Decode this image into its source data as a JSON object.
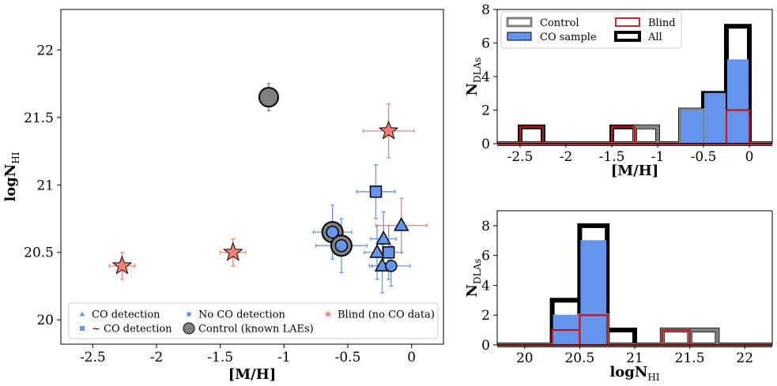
{
  "chart_data": [
    {
      "id": "scatter",
      "type": "scatter",
      "xlabel": "[M/H]",
      "ylabel_main": "logN",
      "ylabel_sub": "HI",
      "xlim": [
        -2.75,
        0.25
      ],
      "ylim": [
        19.82,
        22.3
      ],
      "xticks": [
        -2.5,
        -2,
        -1.5,
        -1,
        -0.5,
        0
      ],
      "xtick_labels": [
        "-2.5",
        "-2",
        "-1.5",
        "-1",
        "-0.5",
        "0"
      ],
      "yticks": [
        20,
        20.5,
        21,
        21.5,
        22
      ],
      "ytick_labels": [
        "20",
        "20.5",
        "21",
        "21.5",
        "22"
      ],
      "colors": {
        "co": "#6495ed",
        "blind": "#fa8072",
        "control": "#808080"
      },
      "points": [
        {
          "x": -1.12,
          "y": 21.65,
          "xerr": 0.07,
          "yerr": 0.1,
          "type": "control",
          "ecolor": "#808080"
        },
        {
          "x": -0.18,
          "y": 21.4,
          "xerr": 0.2,
          "yerr": 0.2,
          "type": "blind",
          "ecolor": "#fa8072"
        },
        {
          "x": -2.27,
          "y": 20.4,
          "xerr": 0.1,
          "yerr": 0.1,
          "type": "blind",
          "ecolor": "#fa8072"
        },
        {
          "x": -1.4,
          "y": 20.5,
          "xerr": 0.1,
          "yerr": 0.1,
          "type": "blind",
          "ecolor": "#fa8072"
        },
        {
          "x": -0.08,
          "y": 20.7,
          "xerr": 0.2,
          "yerr": 0.2,
          "type": "co_detection",
          "ecolor": "#fa8072"
        },
        {
          "x": -0.28,
          "y": 20.95,
          "xerr": 0.15,
          "yerr": 0.2,
          "type": "tentative",
          "ecolor": "#6495ed"
        },
        {
          "x": -0.62,
          "y": 20.65,
          "xerr": 0.15,
          "yerr": 0.2,
          "type": "control_no_co",
          "ecolor": "#6495ed"
        },
        {
          "x": -0.55,
          "y": 20.55,
          "xerr": 0.2,
          "yerr": 0.2,
          "type": "control_no_co",
          "ecolor": "#6495ed"
        },
        {
          "x": -0.22,
          "y": 20.6,
          "xerr": 0.1,
          "yerr": 0.2,
          "type": "co_detection",
          "ecolor": "#6495ed"
        },
        {
          "x": -0.27,
          "y": 20.5,
          "xerr": 0.1,
          "yerr": 0.2,
          "type": "co_detection",
          "ecolor": "#6495ed"
        },
        {
          "x": -0.18,
          "y": 20.5,
          "xerr": 0.1,
          "yerr": 0.2,
          "type": "tentative",
          "ecolor": "#6495ed"
        },
        {
          "x": -0.23,
          "y": 20.4,
          "xerr": 0.1,
          "yerr": 0.2,
          "type": "co_detection",
          "ecolor": "#6495ed"
        },
        {
          "x": -0.16,
          "y": 20.4,
          "xerr": 0.15,
          "yerr": 0.15,
          "type": "no_co",
          "ecolor": "#6495ed"
        }
      ],
      "legend": [
        {
          "symbol": "triangle",
          "label": "CO detection"
        },
        {
          "symbol": "circle",
          "label": "No CO detection"
        },
        {
          "symbol": "star",
          "label": "Blind (no CO data)"
        },
        {
          "symbol": "square",
          "label": "~ CO detection"
        },
        {
          "symbol": "bigcircle",
          "label": "Control (known LAEs)"
        }
      ]
    },
    {
      "id": "hist_metal",
      "type": "bar",
      "xlabel": "[M/H]",
      "ylabel_main": "N",
      "ylabel_sub": "DLAs",
      "xlim": [
        -2.75,
        0.25
      ],
      "ylim": [
        0,
        8
      ],
      "xticks": [
        -2.5,
        -2,
        -1.5,
        -1,
        -0.5,
        0
      ],
      "xtick_labels": [
        "-2.5",
        "-2",
        "-1.5",
        "-1",
        "-0.5",
        "0"
      ],
      "yticks": [
        0,
        2,
        4,
        6,
        8
      ],
      "ytick_labels": [
        "0",
        "2",
        "4",
        "6",
        "8"
      ],
      "bin_edges": [
        -2.75,
        -2.5,
        -2.25,
        -2.0,
        -1.75,
        -1.5,
        -1.25,
        -1.0,
        -0.75,
        -0.5,
        -0.25,
        0.0,
        0.25
      ],
      "series": [
        {
          "name": "All",
          "values": [
            0,
            1,
            0,
            0,
            0,
            1,
            1,
            0,
            2,
            3,
            7,
            0
          ]
        },
        {
          "name": "Control",
          "values": [
            0,
            0,
            0,
            0,
            0,
            0,
            1,
            0,
            2,
            0,
            0,
            0
          ]
        },
        {
          "name": "CO sample",
          "values": [
            0,
            0,
            0,
            0,
            0,
            0,
            0,
            0,
            2,
            3,
            5,
            0
          ]
        },
        {
          "name": "Blind",
          "values": [
            0,
            1,
            0,
            0,
            0,
            1,
            0,
            0,
            0,
            0,
            2,
            0
          ]
        }
      ],
      "legend": [
        {
          "name": "Control",
          "label": "Control"
        },
        {
          "name": "Blind",
          "label": "Blind"
        },
        {
          "name": "CO sample",
          "label": "CO sample"
        },
        {
          "name": "All",
          "label": "All"
        }
      ]
    },
    {
      "id": "hist_nhi",
      "type": "bar",
      "xlabel_main": "logN",
      "xlabel_sub": "HI",
      "ylabel_main": "N",
      "ylabel_sub": "DLAs",
      "xlim": [
        19.75,
        22.25
      ],
      "ylim": [
        0,
        9
      ],
      "xticks": [
        20,
        20.5,
        21,
        21.5,
        22
      ],
      "xtick_labels": [
        "20",
        "20.5",
        "21",
        "21.5",
        "22"
      ],
      "yticks": [
        0,
        2,
        4,
        6,
        8
      ],
      "ytick_labels": [
        "0",
        "2",
        "4",
        "6",
        "8"
      ],
      "bin_edges": [
        19.75,
        20.0,
        20.25,
        20.5,
        20.75,
        21.0,
        21.25,
        21.5,
        21.75,
        22.0,
        22.25
      ],
      "series": [
        {
          "name": "All",
          "values": [
            0,
            0,
            3,
            8,
            1,
            0,
            1,
            1,
            0,
            0
          ]
        },
        {
          "name": "Control",
          "values": [
            0,
            0,
            0,
            2,
            0,
            0,
            1,
            1,
            0,
            0
          ]
        },
        {
          "name": "CO sample",
          "values": [
            0,
            0,
            2,
            7,
            0,
            0,
            0,
            0,
            0,
            0
          ]
        },
        {
          "name": "Blind",
          "values": [
            0,
            0,
            1,
            2,
            0,
            0,
            1,
            0,
            0,
            0
          ]
        }
      ]
    }
  ]
}
